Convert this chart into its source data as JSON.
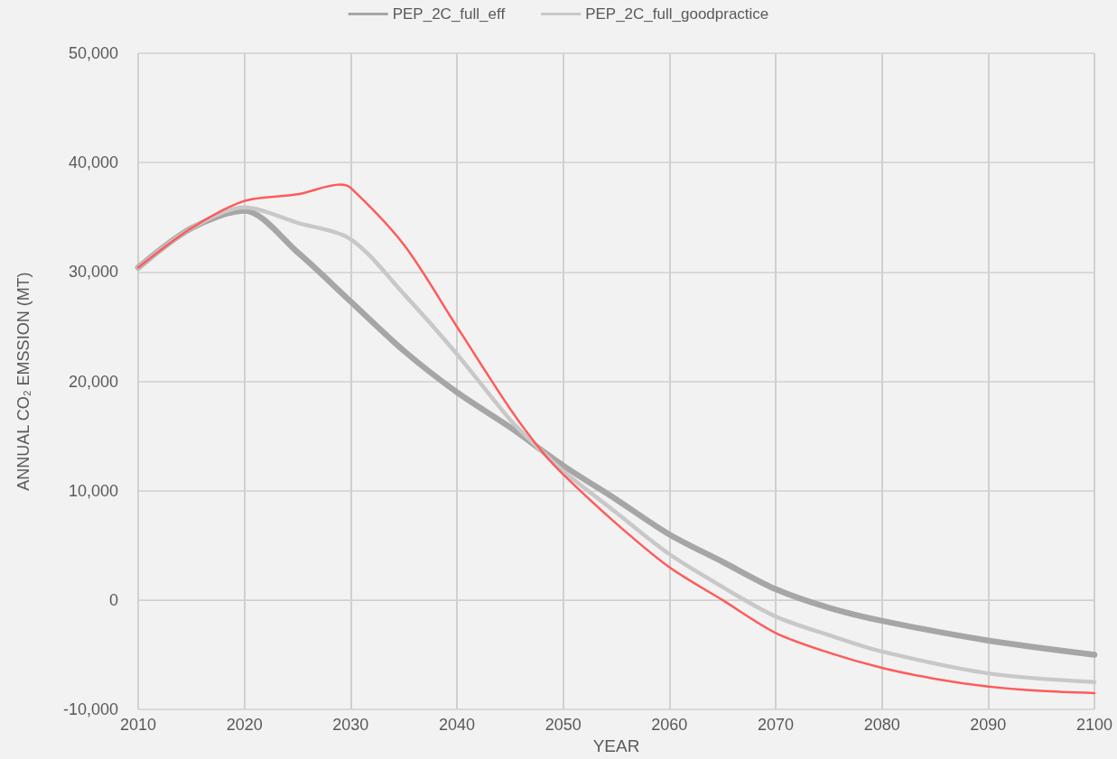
{
  "chart_data": {
    "type": "line",
    "xlabel": "YEAR",
    "ylabel": "ANNUAL CO₂ EMSSION (MT)",
    "xlim": [
      2010,
      2100
    ],
    "xticks": [
      2010,
      2020,
      2030,
      2040,
      2050,
      2060,
      2070,
      2080,
      2090,
      2100
    ],
    "ylim": [
      -10000,
      50000
    ],
    "yticks": [
      {
        "value": -10000,
        "label": "-10,000"
      },
      0,
      {
        "value": 10000,
        "label": "10,000"
      },
      {
        "value": 20000,
        "label": "20,000"
      },
      {
        "value": 30000,
        "label": "30,000"
      },
      {
        "value": 40000,
        "label": "40,000"
      },
      {
        "value": 50000,
        "label": "50,000"
      }
    ],
    "grid": true,
    "legend": "top",
    "marker": "none",
    "line_style": "solid",
    "series": [
      {
        "name": "PEP_2C_full_eff",
        "color": "#a6a6a6",
        "x": [
          2010,
          2015,
          2020,
          2025,
          2030,
          2035,
          2040,
          2045,
          2050,
          2055,
          2060,
          2065,
          2070,
          2075,
          2080,
          2090,
          2100
        ],
        "values": [
          30400,
          34000,
          35600,
          31800,
          27300,
          22800,
          19000,
          15800,
          12300,
          9200,
          6000,
          3500,
          1000,
          -700,
          -1900,
          -3700,
          -5000
        ]
      },
      {
        "name": "PEP_2C_full_goodpractice",
        "color": "#c8c8c8",
        "x": [
          2010,
          2015,
          2020,
          2025,
          2030,
          2035,
          2040,
          2045,
          2048,
          2050,
          2055,
          2060,
          2065,
          2070,
          2075,
          2080,
          2090,
          2100
        ],
        "values": [
          30400,
          34000,
          35900,
          34500,
          33000,
          28000,
          22500,
          16500,
          13600,
          11800,
          8000,
          4200,
          1200,
          -1500,
          -3200,
          -4700,
          -6700,
          -7500
        ]
      },
      {
        "color": "#ff5a5a",
        "x": [
          2010,
          2015,
          2020,
          2025,
          2029,
          2030,
          2035,
          2040,
          2045,
          2048,
          2050,
          2055,
          2060,
          2065,
          2070,
          2075,
          2080,
          2085,
          2090,
          2095,
          2100
        ],
        "values": [
          30400,
          34000,
          36500,
          37100,
          38000,
          37700,
          32500,
          25000,
          17500,
          13600,
          11500,
          7000,
          3000,
          0,
          -3000,
          -4800,
          -6200,
          -7200,
          -7900,
          -8300,
          -8500
        ]
      }
    ]
  }
}
